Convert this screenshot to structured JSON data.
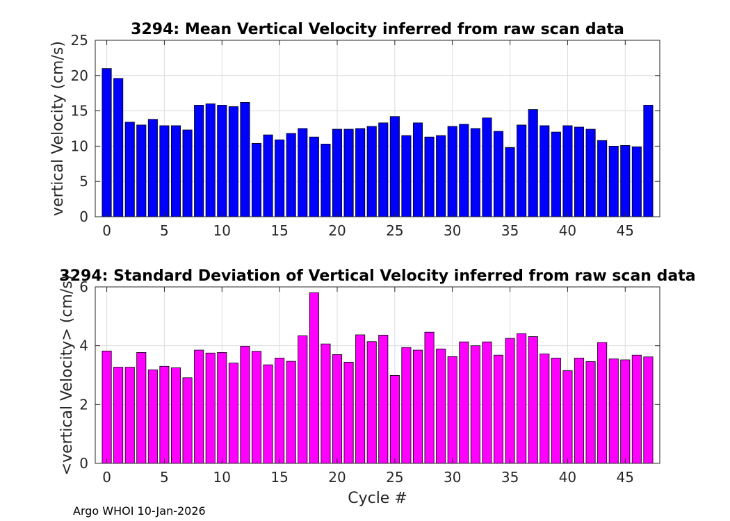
{
  "footer": "Argo WHOI 10-Jan-2026",
  "chart_data": [
    {
      "type": "bar",
      "title": "3294: Mean Vertical Velocity inferred from raw scan data",
      "xlabel": "",
      "ylabel": "vertical Velocity (cm/s)",
      "xlim": [
        -1,
        48
      ],
      "ylim": [
        0,
        25
      ],
      "xticks": [
        0,
        5,
        10,
        15,
        20,
        25,
        30,
        35,
        40,
        45
      ],
      "yticks": [
        0,
        5,
        10,
        15,
        20,
        25
      ],
      "grid": true,
      "color": "#0000ff",
      "x": [
        0,
        1,
        2,
        3,
        4,
        5,
        6,
        7,
        8,
        9,
        10,
        11,
        12,
        13,
        14,
        15,
        16,
        17,
        18,
        19,
        20,
        21,
        22,
        23,
        24,
        25,
        26,
        27,
        28,
        29,
        30,
        31,
        32,
        33,
        34,
        35,
        36,
        37,
        38,
        39,
        40,
        41,
        42,
        43,
        44,
        45,
        46,
        47
      ],
      "values": [
        21.0,
        19.6,
        13.4,
        13.0,
        13.8,
        12.9,
        12.9,
        12.3,
        15.8,
        16.0,
        15.8,
        15.6,
        16.2,
        10.4,
        11.6,
        10.9,
        11.8,
        12.5,
        11.3,
        10.3,
        12.4,
        12.4,
        12.5,
        12.8,
        13.3,
        14.2,
        11.5,
        13.3,
        11.3,
        11.5,
        12.8,
        13.1,
        12.5,
        14.0,
        12.1,
        9.8,
        13.0,
        15.2,
        12.9,
        12.0,
        12.9,
        12.7,
        12.4,
        10.8,
        10.0,
        10.1,
        9.9,
        15.8
      ]
    },
    {
      "type": "bar",
      "title": "3294: Standard Deviation of Vertical Velocity inferred from raw scan data",
      "xlabel": "Cycle #",
      "ylabel": "<vertical Velocity> (cm/s)",
      "xlim": [
        -1,
        48
      ],
      "ylim": [
        0,
        6
      ],
      "xticks": [
        0,
        5,
        10,
        15,
        20,
        25,
        30,
        35,
        40,
        45
      ],
      "yticks": [
        0,
        2,
        4,
        6
      ],
      "grid": true,
      "color": "#ff00ff",
      "x": [
        0,
        1,
        2,
        3,
        4,
        5,
        6,
        7,
        8,
        9,
        10,
        11,
        12,
        13,
        14,
        15,
        16,
        17,
        18,
        19,
        20,
        21,
        22,
        23,
        24,
        25,
        26,
        27,
        28,
        29,
        30,
        31,
        32,
        33,
        34,
        35,
        36,
        37,
        38,
        39,
        40,
        41,
        42,
        43,
        44,
        45,
        46,
        47
      ],
      "values": [
        3.82,
        3.27,
        3.27,
        3.77,
        3.18,
        3.3,
        3.25,
        2.91,
        3.85,
        3.75,
        3.77,
        3.41,
        3.98,
        3.81,
        3.35,
        3.58,
        3.47,
        4.34,
        5.8,
        4.06,
        3.7,
        3.44,
        4.37,
        4.14,
        4.36,
        2.99,
        3.94,
        3.85,
        4.46,
        3.89,
        3.63,
        4.13,
        4.0,
        4.13,
        3.68,
        4.25,
        4.41,
        4.31,
        3.72,
        3.58,
        3.15,
        3.58,
        3.46,
        4.11,
        3.55,
        3.52,
        3.68,
        3.62
      ]
    }
  ]
}
